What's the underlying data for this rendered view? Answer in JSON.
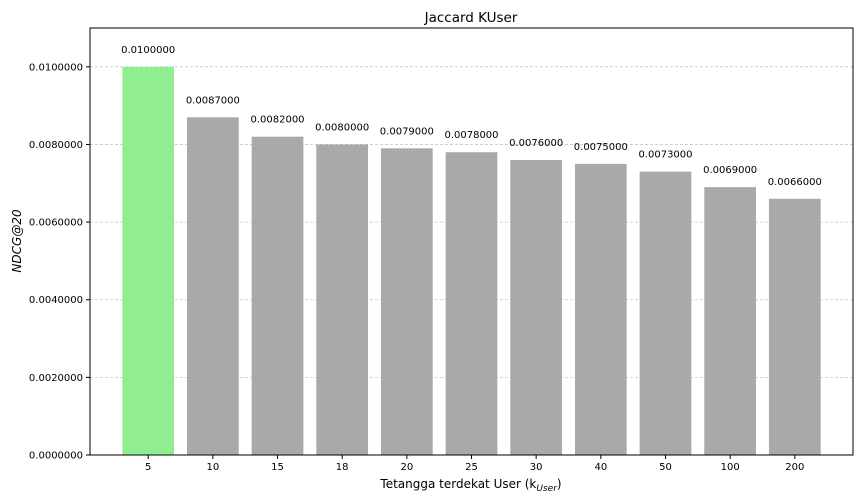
{
  "chart_data": {
    "type": "bar",
    "title": "Jaccard KUser",
    "xlabel": "Tetangga terdekat User (k",
    "xlabel_sub": "User",
    "xlabel_suffix": ")",
    "ylabel": "NDCG@20",
    "categories": [
      "5",
      "10",
      "15",
      "18",
      "20",
      "25",
      "30",
      "40",
      "50",
      "100",
      "200"
    ],
    "values": [
      0.01,
      0.0087,
      0.0082,
      0.008,
      0.0079,
      0.0078,
      0.0076,
      0.0075,
      0.0073,
      0.0069,
      0.0066
    ],
    "data_labels": [
      "0.0100000",
      "0.0087000",
      "0.0082000",
      "0.0080000",
      "0.0079000",
      "0.0078000",
      "0.0076000",
      "0.0075000",
      "0.0073000",
      "0.0069000",
      "0.0066000"
    ],
    "ylim": [
      0,
      0.011
    ],
    "yticks": [
      0.0,
      0.002,
      0.004,
      0.006,
      0.008,
      0.01
    ],
    "ytick_labels": [
      "0.0000000",
      "0.0020000",
      "0.0040000",
      "0.0060000",
      "0.0080000",
      "0.0100000"
    ],
    "grid": "y-dashed",
    "highlight_index": 0,
    "colors": {
      "highlight": "#90ee90",
      "default": "#a9a9a9",
      "grid": "#c8c8c8",
      "axis": "#000000"
    }
  }
}
